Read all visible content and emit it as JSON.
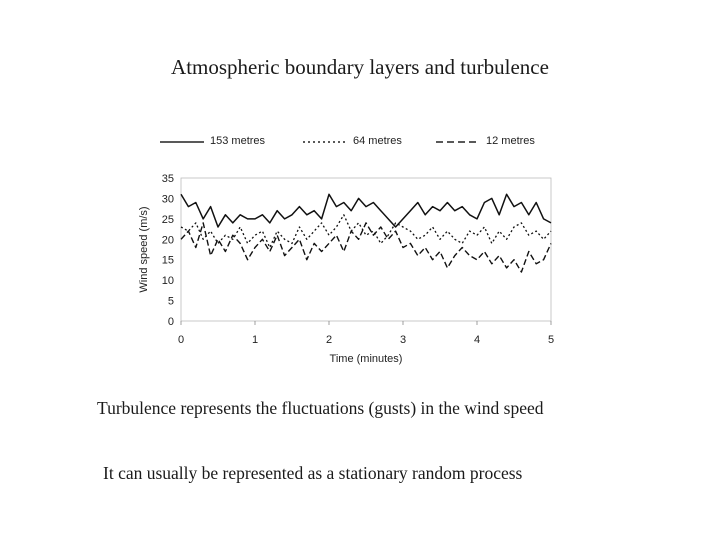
{
  "slide": {
    "title": "Atmospheric boundary layers and turbulence",
    "caption_1": "Turbulence represents the fluctuations (gusts) in the wind speed",
    "caption_2": "It can usually be represented as a stationary random process"
  },
  "chart_data": {
    "type": "line",
    "title": "",
    "xlabel": "Time (minutes)",
    "ylabel": "Wind speed (m/s)",
    "xlim": [
      0,
      5
    ],
    "ylim": [
      0,
      35
    ],
    "xticks": [
      0,
      1,
      2,
      3,
      4,
      5
    ],
    "yticks": [
      0,
      5,
      10,
      15,
      20,
      25,
      30,
      35
    ],
    "legend_position": "top",
    "series": [
      {
        "name": "153 metres",
        "style": "solid",
        "x": [
          0.0,
          0.1,
          0.2,
          0.3,
          0.4,
          0.5,
          0.6,
          0.7,
          0.8,
          0.9,
          1.0,
          1.1,
          1.2,
          1.3,
          1.4,
          1.5,
          1.6,
          1.7,
          1.8,
          1.9,
          2.0,
          2.1,
          2.2,
          2.3,
          2.4,
          2.5,
          2.6,
          2.7,
          2.8,
          2.9,
          3.0,
          3.1,
          3.2,
          3.3,
          3.4,
          3.5,
          3.6,
          3.7,
          3.8,
          3.9,
          4.0,
          4.1,
          4.2,
          4.3,
          4.4,
          4.5,
          4.6,
          4.7,
          4.8,
          4.9,
          5.0
        ],
        "values": [
          31,
          28,
          29,
          25,
          28,
          23,
          26,
          24,
          26,
          25,
          25,
          26,
          24,
          27,
          25,
          26,
          28,
          26,
          27,
          25,
          31,
          28,
          29,
          27,
          30,
          28,
          29,
          27,
          25,
          23,
          25,
          27,
          29,
          26,
          28,
          27,
          29,
          27,
          28,
          26,
          25,
          29,
          30,
          26,
          31,
          28,
          29,
          26,
          29,
          25,
          24
        ]
      },
      {
        "name": "64 metres",
        "style": "dotted",
        "x": [
          0.0,
          0.1,
          0.2,
          0.3,
          0.4,
          0.5,
          0.6,
          0.7,
          0.8,
          0.9,
          1.0,
          1.1,
          1.2,
          1.3,
          1.4,
          1.5,
          1.6,
          1.7,
          1.8,
          1.9,
          2.0,
          2.1,
          2.2,
          2.3,
          2.4,
          2.5,
          2.6,
          2.7,
          2.8,
          2.9,
          3.0,
          3.1,
          3.2,
          3.3,
          3.4,
          3.5,
          3.6,
          3.7,
          3.8,
          3.9,
          4.0,
          4.1,
          4.2,
          4.3,
          4.4,
          4.5,
          4.6,
          4.7,
          4.8,
          4.9,
          5.0
        ],
        "values": [
          23,
          22,
          24,
          20,
          22,
          19,
          21,
          20,
          23,
          19,
          21,
          22,
          18,
          22,
          20,
          19,
          23,
          20,
          22,
          24,
          21,
          23,
          26,
          22,
          24,
          21,
          22,
          19,
          21,
          24,
          23,
          22,
          20,
          21,
          23,
          20,
          22,
          20,
          19,
          22,
          21,
          23,
          19,
          22,
          20,
          23,
          24,
          21,
          22,
          20,
          22
        ]
      },
      {
        "name": "12 metres",
        "style": "dashed",
        "x": [
          0.0,
          0.1,
          0.2,
          0.3,
          0.4,
          0.5,
          0.6,
          0.7,
          0.8,
          0.9,
          1.0,
          1.1,
          1.2,
          1.3,
          1.4,
          1.5,
          1.6,
          1.7,
          1.8,
          1.9,
          2.0,
          2.1,
          2.2,
          2.3,
          2.4,
          2.5,
          2.6,
          2.7,
          2.8,
          2.9,
          3.0,
          3.1,
          3.2,
          3.3,
          3.4,
          3.5,
          3.6,
          3.7,
          3.8,
          3.9,
          4.0,
          4.1,
          4.2,
          4.3,
          4.4,
          4.5,
          4.6,
          4.7,
          4.8,
          4.9,
          5.0
        ],
        "values": [
          20,
          22,
          18,
          24,
          16,
          20,
          17,
          21,
          19,
          15,
          18,
          20,
          17,
          21,
          16,
          18,
          20,
          15,
          19,
          17,
          19,
          21,
          17,
          22,
          20,
          24,
          21,
          23,
          20,
          22,
          18,
          19,
          16,
          18,
          15,
          17,
          13,
          16,
          18,
          16,
          15,
          17,
          14,
          16,
          13,
          15,
          12,
          17,
          14,
          15,
          19
        ]
      }
    ]
  }
}
